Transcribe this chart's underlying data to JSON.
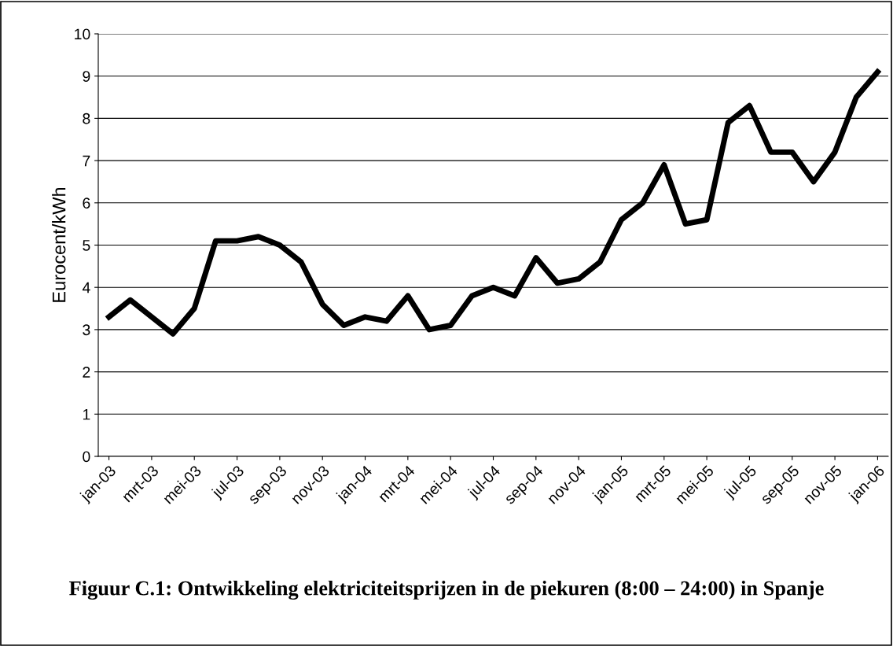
{
  "chart_data": {
    "type": "line",
    "title": "Figuur C.1: Ontwikkeling elektriciteitsprijzen in de piekuren (8:00 – 24:00) in Spanje",
    "ylabel": "Eurocent/kWh",
    "categories": [
      "jan-03",
      null,
      "mrt-03",
      null,
      "mei-03",
      null,
      "jul-03",
      null,
      "sep-03",
      null,
      "nov-03",
      null,
      "jan-04",
      null,
      "mrt-04",
      null,
      "mei-04",
      null,
      "jul-04",
      null,
      "sep-04",
      null,
      "nov-04",
      null,
      "jan-05",
      null,
      "mrt-05",
      null,
      "mei-05",
      null,
      "jul-05",
      null,
      "sep-05",
      null,
      "nov-05",
      null,
      "jan-06"
    ],
    "series": [
      {
        "color": "#000000",
        "values": [
          3.3,
          3.7,
          3.3,
          2.9,
          3.5,
          5.1,
          5.1,
          5.2,
          5.0,
          4.6,
          3.6,
          3.1,
          3.3,
          3.2,
          3.8,
          3.0,
          3.1,
          3.8,
          4.0,
          3.8,
          4.7,
          4.1,
          4.2,
          4.6,
          5.6,
          6.0,
          6.9,
          5.5,
          5.6,
          7.9,
          8.3,
          7.2,
          7.2,
          6.5,
          7.2,
          8.5,
          9.1
        ]
      }
    ],
    "ylim": [
      0,
      10
    ],
    "yticks": [
      0,
      1,
      2,
      3,
      4,
      5,
      6,
      7,
      8,
      9,
      10
    ],
    "grid": "y",
    "marker": "none",
    "line_style": "solid"
  }
}
